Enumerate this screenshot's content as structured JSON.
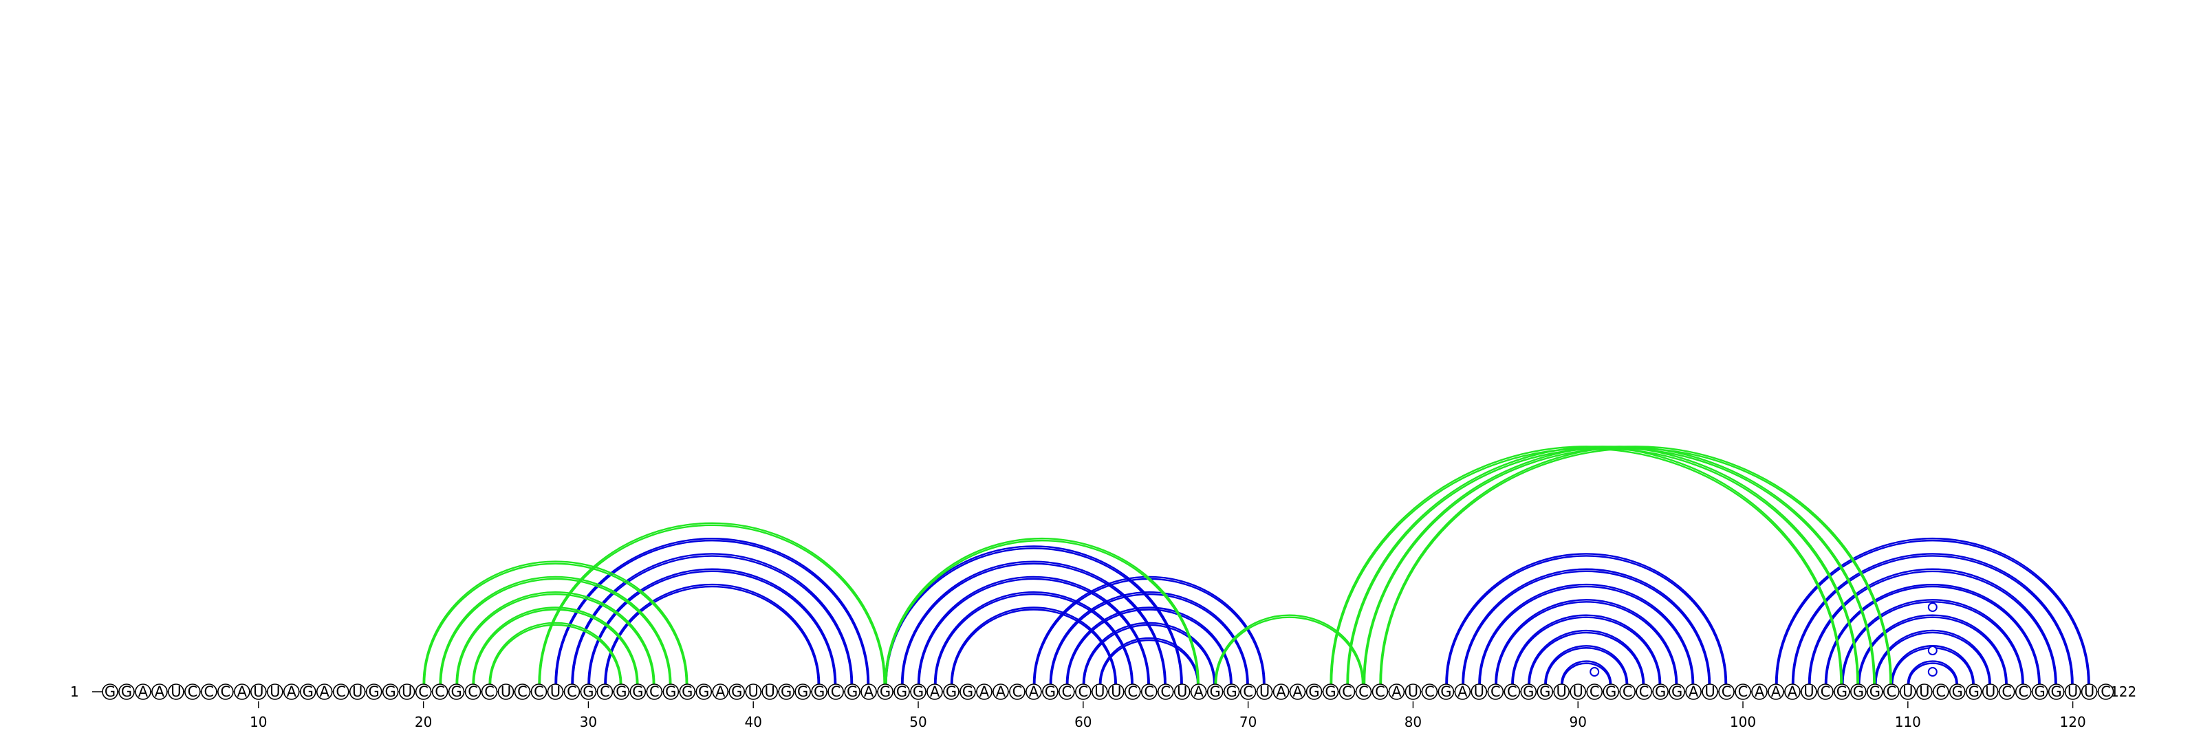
{
  "sequence": "GGAAUCCCAUUAGACUGGUCCGCCUCCUCGCGGCGGGAGUUGGGCGAGGGAGGAACAGCCUUCCCUAGGCUAAGGCCCAUCGAUCCGGUUCGCCGGAUCCAAAUCGGGCUUCGGUCCGGUUC",
  "start_label": "1",
  "end_label": "122",
  "ticks": [
    "10",
    "20",
    "30",
    "40",
    "50",
    "60",
    "70",
    "80",
    "90",
    "100",
    "110",
    "120"
  ],
  "colors": {
    "blue": "#0000dd",
    "green": "#22e622"
  },
  "chart_data": {
    "type": "arc-diagram",
    "length": 122,
    "pairs_blue": [
      [
        28,
        47
      ],
      [
        29,
        46
      ],
      [
        30,
        45
      ],
      [
        31,
        44
      ],
      [
        48,
        66
      ],
      [
        49,
        65
      ],
      [
        50,
        64
      ],
      [
        51,
        63
      ],
      [
        52,
        62
      ],
      [
        57,
        71
      ],
      [
        58,
        70
      ],
      [
        59,
        69
      ],
      [
        60,
        68
      ],
      [
        61,
        67
      ],
      [
        82,
        99
      ],
      [
        83,
        98
      ],
      [
        84,
        97
      ],
      [
        85,
        96
      ],
      [
        86,
        95
      ],
      [
        87,
        94
      ],
      [
        88,
        93
      ],
      [
        89,
        92
      ],
      [
        102,
        121
      ],
      [
        103,
        120
      ],
      [
        104,
        119
      ],
      [
        105,
        118
      ],
      [
        106,
        117
      ],
      [
        107,
        116
      ],
      [
        108,
        115
      ],
      [
        109,
        114
      ],
      [
        110,
        113
      ]
    ],
    "pairs_green": [
      [
        20,
        36
      ],
      [
        21,
        35
      ],
      [
        22,
        34
      ],
      [
        23,
        33
      ],
      [
        24,
        32
      ],
      [
        27,
        48
      ],
      [
        48,
        67
      ],
      [
        68,
        77
      ],
      [
        75,
        106
      ],
      [
        76,
        107
      ],
      [
        77,
        108
      ],
      [
        78,
        109
      ]
    ],
    "hairpin_markers": [
      91,
      111.5,
      111.5,
      111.5
    ]
  }
}
